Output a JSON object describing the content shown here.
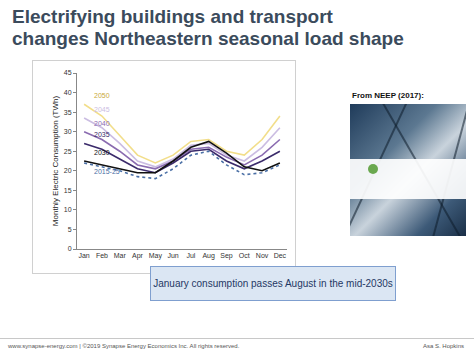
{
  "slide": {
    "title_lines": [
      "Electrifying buildings and transport",
      "changes Northeastern seasonal load shape"
    ],
    "source_note": "From NEEP (2017):",
    "callout": "January consumption passes August in the mid-2030s",
    "footer": "www.synapse-energy.com  |  ©2019 Synapse Energy Economics Inc. All rights reserved.",
    "author": "Asa S. Hopkins"
  },
  "chart_data": {
    "type": "line",
    "y_label": "Monthly Electric Consumption (TWh)",
    "categories": [
      "Jan",
      "Feb",
      "Mar",
      "Apr",
      "May",
      "Jun",
      "Jul",
      "Aug",
      "Sep",
      "Oct",
      "Nov",
      "Dec"
    ],
    "ylim": [
      0,
      45
    ],
    "yticks": [
      0,
      5,
      10,
      15,
      20,
      25,
      30,
      35,
      40,
      45
    ],
    "grid": false,
    "series": [
      {
        "name": "2015-25",
        "color": "#4a6fa5",
        "line_style": "dotted",
        "values": [
          22,
          21,
          20,
          18.5,
          18,
          20.5,
          24,
          25,
          21.5,
          19,
          19.5,
          21.5
        ]
      },
      {
        "name": "2030",
        "color": "#111111",
        "line_style": "solid",
        "values": [
          22.5,
          21.5,
          20.5,
          19.5,
          19.5,
          22.5,
          26,
          27.5,
          24.5,
          21,
          20,
          22
        ]
      },
      {
        "name": "2035",
        "color": "#3b2b6b",
        "line_style": "solid",
        "values": [
          27,
          25.5,
          23,
          20.5,
          19.5,
          22,
          25,
          25.5,
          22.5,
          20.5,
          22.5,
          25
        ]
      },
      {
        "name": "2040",
        "color": "#8a6bb0",
        "line_style": "solid",
        "values": [
          30,
          28,
          25,
          21.5,
          20.5,
          22.5,
          25.5,
          26,
          23.5,
          21.5,
          24,
          28
        ]
      },
      {
        "name": "2045",
        "color": "#cbbde2",
        "line_style": "solid",
        "values": [
          33.5,
          31,
          27,
          22.5,
          21,
          23,
          26.5,
          27,
          24,
          22.5,
          26,
          31
        ]
      },
      {
        "name": "2050",
        "color": "#f2de8a",
        "line_style": "solid",
        "values": [
          37,
          34,
          29,
          24,
          22,
          24,
          27.5,
          28,
          25,
          24,
          28,
          34
        ]
      }
    ]
  }
}
